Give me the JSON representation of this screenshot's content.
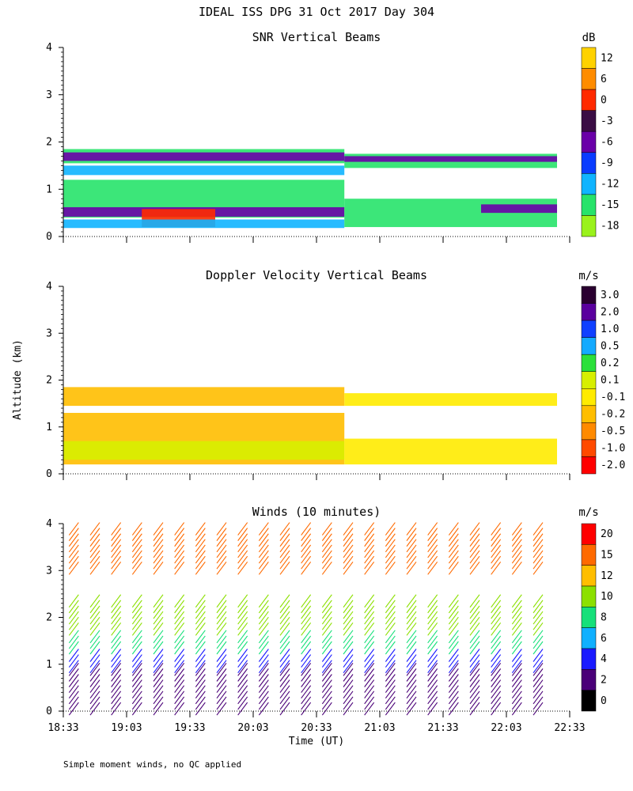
{
  "page_title": "IDEAL ISS DPG  31 Oct 2017 Day 304",
  "footnote": "Simple moment winds, no QC applied",
  "shared_axes": {
    "xlabel": "Time (UT)",
    "ylabel": "Altitude (km)",
    "xlim": [
      "18:33",
      "22:33"
    ],
    "ylim": [
      0,
      4
    ],
    "xticks": [
      "18:33",
      "19:03",
      "19:33",
      "20:03",
      "20:33",
      "21:03",
      "21:33",
      "22:03",
      "22:33"
    ],
    "yticks": [
      "0",
      "1",
      "2",
      "3",
      "4"
    ]
  },
  "chart_data": [
    {
      "type": "heatmap",
      "title": "SNR Vertical Beams",
      "colorbar_unit": "dB",
      "colorbar_labels": [
        "12",
        "6",
        "0",
        "-3",
        "-6",
        "-9",
        "-12",
        "-15",
        "-18"
      ],
      "colors": [
        "#ffd200",
        "#ff8c00",
        "#ff2a00",
        "#3a0d44",
        "#6a00a8",
        "#0a3cff",
        "#10b4ff",
        "#27e36a",
        "#9af21c"
      ],
      "bands": [
        {
          "t0": 0.0,
          "t1": 2.22,
          "z0": 1.55,
          "z1": 1.85,
          "level": "-15"
        },
        {
          "t0": 0.0,
          "t1": 2.22,
          "z0": 1.6,
          "z1": 1.78,
          "level": "-6"
        },
        {
          "t0": 2.22,
          "t1": 3.9,
          "z0": 1.45,
          "z1": 1.75,
          "level": "-15"
        },
        {
          "t0": 2.22,
          "t1": 3.9,
          "z0": 1.58,
          "z1": 1.7,
          "level": "-6"
        },
        {
          "t0": 0.0,
          "t1": 2.22,
          "z0": 1.3,
          "z1": 1.5,
          "level": "-12"
        },
        {
          "t0": 0.0,
          "t1": 2.22,
          "z0": 0.4,
          "z1": 1.2,
          "level": "-15"
        },
        {
          "t0": 0.0,
          "t1": 2.22,
          "z0": 0.42,
          "z1": 0.62,
          "level": "-6"
        },
        {
          "t0": 0.62,
          "t1": 1.2,
          "z0": 0.2,
          "z1": 0.58,
          "level": "0"
        },
        {
          "t0": 0.0,
          "t1": 2.22,
          "z0": 0.18,
          "z1": 0.36,
          "level": "-12"
        },
        {
          "t0": 2.22,
          "t1": 3.9,
          "z0": 0.2,
          "z1": 0.8,
          "level": "-15"
        },
        {
          "t0": 3.3,
          "t1": 3.9,
          "z0": 0.5,
          "z1": 0.68,
          "level": "-6"
        }
      ]
    },
    {
      "type": "heatmap",
      "title": "Doppler Velocity Vertical Beams",
      "colorbar_unit": "m/s",
      "colorbar_labels": [
        "3.0",
        "2.0",
        "1.0",
        "0.5",
        "0.2",
        "0.1",
        "-0.1",
        "-0.2",
        "-0.5",
        "-1.0",
        "-2.0"
      ],
      "colors": [
        "#2a0030",
        "#5a009e",
        "#1040ff",
        "#14aaff",
        "#2be03a",
        "#d7ef00",
        "#ffeb00",
        "#ffbe00",
        "#ff8a00",
        "#ff4a00",
        "#ff0000"
      ],
      "bands": [
        {
          "t0": 0.0,
          "t1": 2.22,
          "z0": 1.45,
          "z1": 1.85,
          "level": "-0.2"
        },
        {
          "t0": 2.22,
          "t1": 3.9,
          "z0": 1.45,
          "z1": 1.72,
          "level": "-0.1"
        },
        {
          "t0": 0.0,
          "t1": 2.22,
          "z0": 0.2,
          "z1": 1.3,
          "level": "-0.2"
        },
        {
          "t0": 0.0,
          "t1": 2.22,
          "z0": 0.3,
          "z1": 0.7,
          "level": "0.1"
        },
        {
          "t0": 2.22,
          "t1": 3.9,
          "z0": 0.2,
          "z1": 0.75,
          "level": "-0.1"
        }
      ]
    },
    {
      "type": "wind_barbs",
      "title": "Winds (10 minutes)",
      "colorbar_unit": "m/s",
      "colorbar_labels": [
        "20",
        "15",
        "12",
        "10",
        "8",
        "6",
        "4",
        "2",
        "0"
      ],
      "colors": [
        "#ff0000",
        "#ff6a00",
        "#ffbe00",
        "#8ce000",
        "#16e07a",
        "#10b0ff",
        "#1a1aff",
        "#4a0078",
        "#000000"
      ],
      "profile_times_min": [
        5,
        15,
        25,
        35,
        45,
        55,
        65,
        75,
        85,
        95,
        105,
        115,
        125,
        135,
        145,
        155,
        165,
        175,
        185,
        195,
        205,
        215,
        225
      ],
      "speed_by_altitude": [
        {
          "z0": 0.0,
          "z1": 0.9,
          "speed": 3
        },
        {
          "z0": 0.9,
          "z1": 1.3,
          "speed": 5
        },
        {
          "z0": 1.3,
          "z1": 1.7,
          "speed": 9
        },
        {
          "z0": 1.7,
          "z1": 2.4,
          "speed": 11
        },
        {
          "z0": 3.0,
          "z1": 3.9,
          "speed": 18
        }
      ]
    }
  ]
}
